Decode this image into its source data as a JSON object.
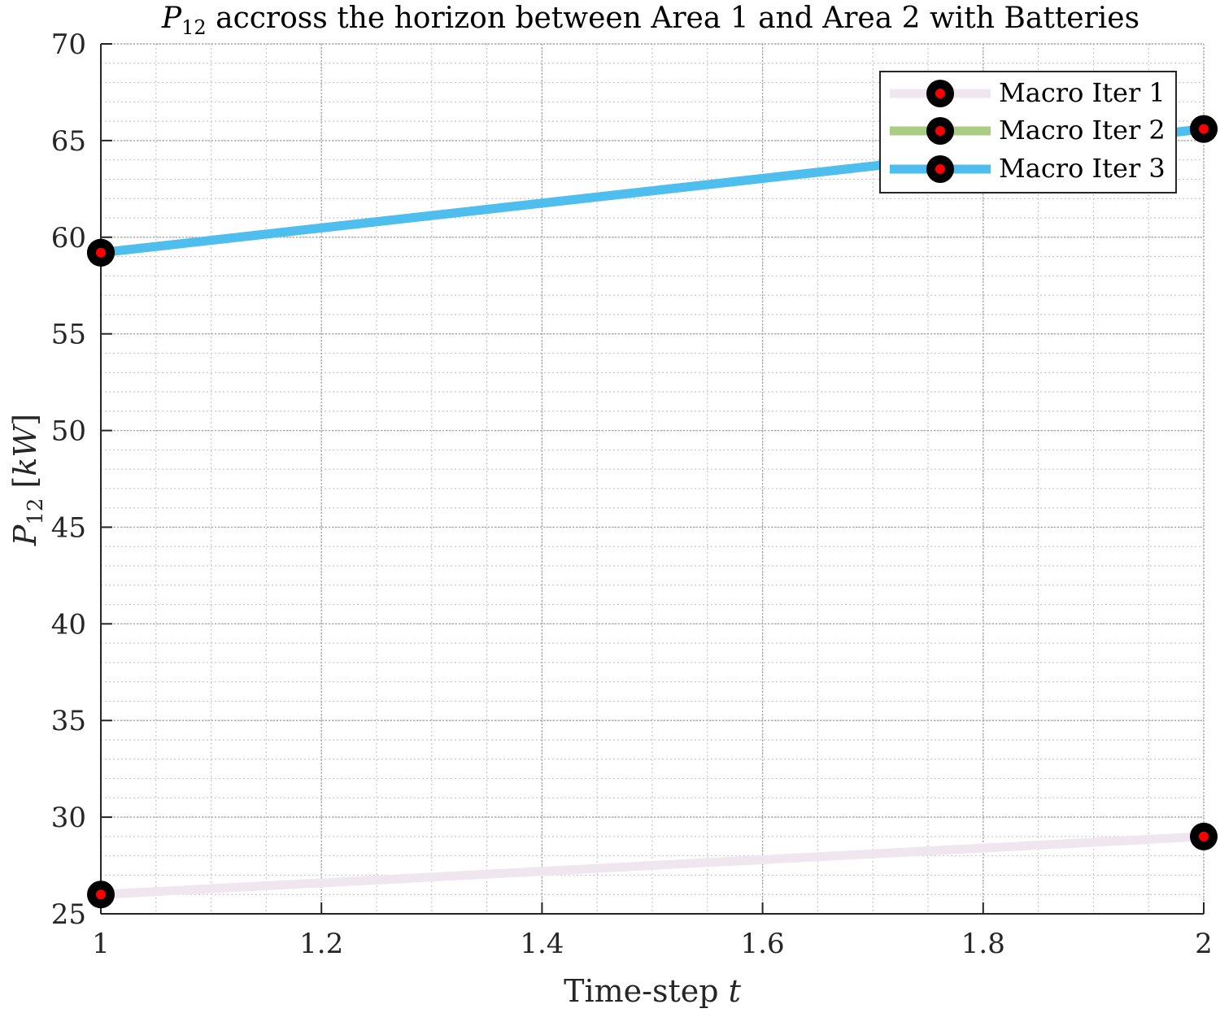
{
  "chart_data": {
    "type": "line",
    "title": {
      "symbol": "P",
      "subscript": "12",
      "rest": " accross the horizon between Area 1 and Area 2 with Batteries"
    },
    "xlabel": {
      "text": "Time-step ",
      "var": "t"
    },
    "ylabel": {
      "symbol": "P",
      "subscript": "12",
      "unit_open": " [",
      "unit": "kW",
      "unit_close": "]"
    },
    "xlim": [
      1,
      2
    ],
    "ylim": [
      25,
      70
    ],
    "x_major_ticks": [
      1,
      1.2,
      1.4,
      1.6,
      1.8,
      2
    ],
    "x_tick_labels": [
      "1",
      "1.2",
      "1.4",
      "1.6",
      "1.8",
      "2"
    ],
    "x_minor_step": 0.05,
    "y_major_ticks": [
      25,
      30,
      35,
      40,
      45,
      50,
      55,
      60,
      65,
      70
    ],
    "y_tick_labels": [
      "25",
      "30",
      "35",
      "40",
      "45",
      "50",
      "55",
      "60",
      "65",
      "70"
    ],
    "y_minor_step": 1,
    "grid": true,
    "minor_grid": true,
    "legend_position": "top-right",
    "marker": {
      "outer_color": "#000000",
      "inner_color": "#ff0000"
    },
    "series": [
      {
        "name": "Macro Iter 1",
        "x": [
          1,
          2
        ],
        "y": [
          26.0,
          29.0
        ],
        "color": "#f0e6f0"
      },
      {
        "name": "Macro Iter 2",
        "x": [
          1,
          2
        ],
        "y": [
          59.2,
          65.6
        ],
        "color": "#a9cd82"
      },
      {
        "name": "Macro Iter 3",
        "x": [
          1,
          2
        ],
        "y": [
          59.2,
          65.6
        ],
        "color": "#4dbeee"
      }
    ]
  }
}
